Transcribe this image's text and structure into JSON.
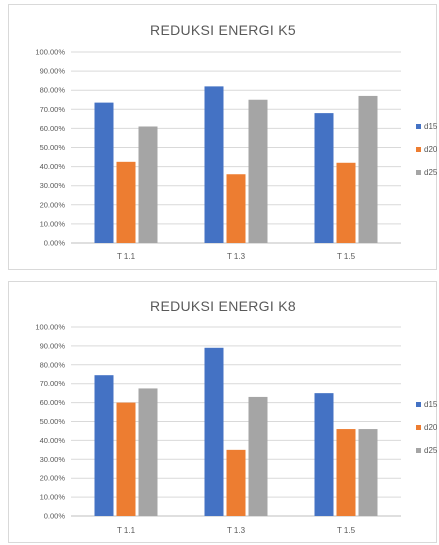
{
  "chart_data": [
    {
      "type": "bar",
      "title": "REDUKSI ENERGI K5",
      "categories": [
        "T 1.1",
        "T 1.3",
        "T 1.5"
      ],
      "series": [
        {
          "name": "d15",
          "color": "#4472c4",
          "values": [
            73.5,
            82.0,
            68.0
          ]
        },
        {
          "name": "d20",
          "color": "#ed7d31",
          "values": [
            42.5,
            36.0,
            42.0
          ]
        },
        {
          "name": "d25",
          "color": "#a5a5a5",
          "values": [
            61.0,
            75.0,
            77.0
          ]
        }
      ],
      "yticks": [
        "0.00%",
        "10.00%",
        "20.00%",
        "30.00%",
        "40.00%",
        "50.00%",
        "60.00%",
        "70.00%",
        "80.00%",
        "90.00%",
        "100.00%"
      ],
      "ylim": [
        0,
        100
      ],
      "grid": true,
      "legend_position": "right"
    },
    {
      "type": "bar",
      "title": "REDUKSI ENERGI K8",
      "categories": [
        "T 1.1",
        "T 1.3",
        "T 1.5"
      ],
      "series": [
        {
          "name": "d15",
          "color": "#4472c4",
          "values": [
            74.5,
            89.0,
            65.0
          ]
        },
        {
          "name": "d20",
          "color": "#ed7d31",
          "values": [
            60.0,
            35.0,
            46.0
          ]
        },
        {
          "name": "d25",
          "color": "#a5a5a5",
          "values": [
            67.5,
            63.0,
            46.0
          ]
        }
      ],
      "yticks": [
        "0.00%",
        "10.00%",
        "20.00%",
        "30.00%",
        "40.00%",
        "50.00%",
        "60.00%",
        "70.00%",
        "80.00%",
        "90.00%",
        "100.00%"
      ],
      "ylim": [
        0,
        100
      ],
      "grid": true,
      "legend_position": "right"
    }
  ]
}
